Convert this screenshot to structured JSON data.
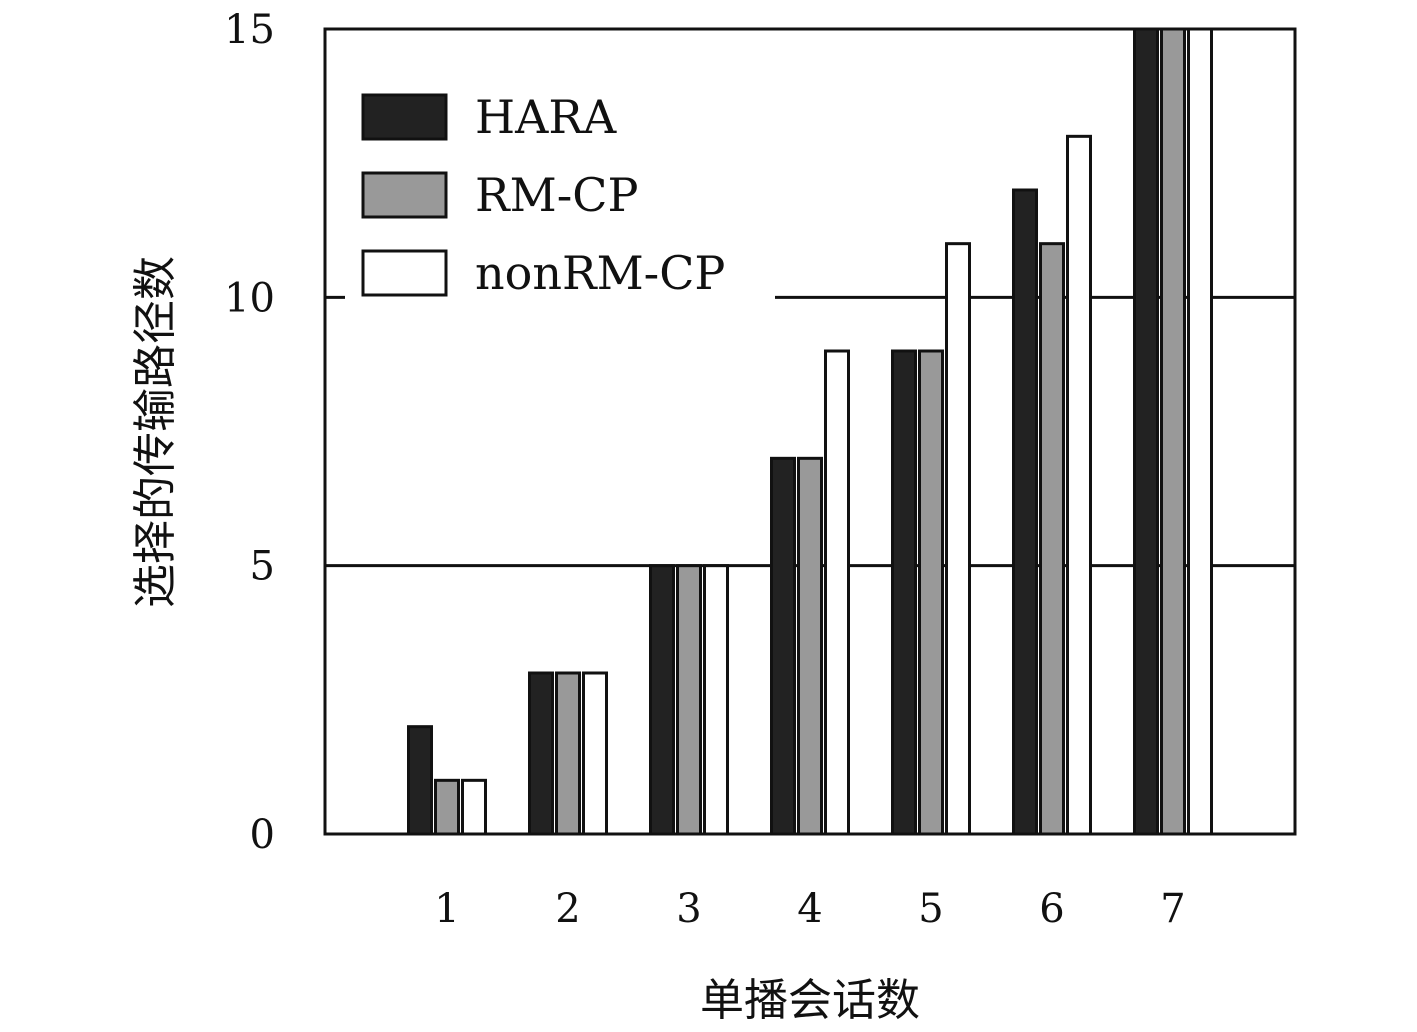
{
  "chart_data": {
    "type": "bar",
    "title": "",
    "xlabel": "单播会话数",
    "ylabel": "选择的传输路径数",
    "categories": [
      "1",
      "2",
      "3",
      "4",
      "5",
      "6",
      "7"
    ],
    "series": [
      {
        "name": "HARA",
        "color": "#222222",
        "values": [
          2,
          3,
          5,
          7,
          9,
          12,
          15
        ]
      },
      {
        "name": "RM-CP",
        "color": "#999999",
        "values": [
          1,
          3,
          5,
          7,
          9,
          11,
          15
        ]
      },
      {
        "name": "nonRM-CP",
        "color": "#ffffff",
        "values": [
          1,
          3,
          5,
          9,
          11,
          13,
          15
        ]
      }
    ],
    "ylim": [
      0,
      15
    ],
    "yticks": [
      "0",
      "5",
      "10",
      "15"
    ],
    "ytick_values": [
      0,
      5,
      10,
      15
    ],
    "grid": "horizontal at 5 and 10",
    "legend_position": "top-left"
  }
}
